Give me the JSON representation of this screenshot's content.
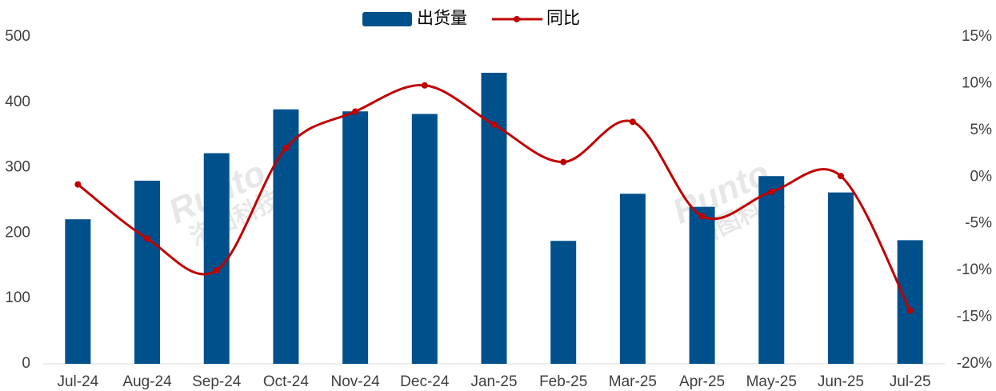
{
  "chart_data": {
    "type": "bar-line",
    "categories": [
      "Jul-24",
      "Aug-24",
      "Sep-24",
      "Oct-24",
      "Nov-24",
      "Dec-24",
      "Jan-25",
      "Feb-25",
      "Mar-25",
      "Apr-25",
      "May-25",
      "Jun-25",
      "Jul-25"
    ],
    "series": [
      {
        "name": "出货量",
        "type": "bar",
        "color": "#00508c",
        "values": [
          221,
          280,
          322,
          389,
          386,
          382,
          445,
          188,
          260,
          240,
          287,
          262,
          189
        ]
      },
      {
        "name": "同比",
        "type": "line",
        "axis": "y2",
        "color": "#c00000",
        "values": [
          -0.8,
          -6.6,
          -10.0,
          3.1,
          7.0,
          9.8,
          5.6,
          1.6,
          5.9,
          -4.2,
          -1.6,
          0.1,
          -14.3
        ]
      }
    ],
    "ylim": [
      0,
      500
    ],
    "yticks": [
      0,
      100,
      200,
      300,
      400,
      500
    ],
    "y2lim": [
      -20,
      15
    ],
    "y2ticks": [
      {
        "value": -20,
        "label": "-20%"
      },
      {
        "value": -15,
        "label": "-15%"
      },
      {
        "value": -10,
        "label": "-10%"
      },
      {
        "value": -5,
        "label": "-5%"
      },
      {
        "value": 0,
        "label": "0%"
      },
      {
        "value": 5,
        "label": "5%"
      },
      {
        "value": 10,
        "label": "10%"
      },
      {
        "value": 15,
        "label": "15%"
      }
    ],
    "legend": "top",
    "watermark": [
      "Runto",
      "洛图科技"
    ]
  }
}
